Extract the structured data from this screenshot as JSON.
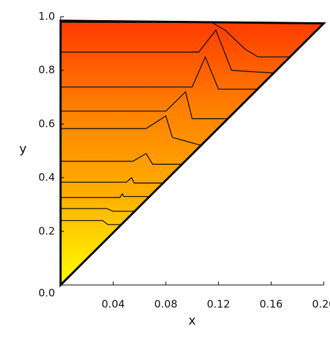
{
  "chart_data": {
    "type": "contour",
    "xlabel": "x",
    "ylabel": "y",
    "xlim": [
      0,
      0.2
    ],
    "ylim": [
      0,
      1
    ],
    "xticks": [
      0.04,
      0.08,
      0.12,
      0.16,
      {
        "value": 0.2,
        "label": "0.20"
      }
    ],
    "yticks": [
      {
        "value": 0,
        "label": "0.0"
      },
      0.2,
      0.4,
      0.6,
      0.8,
      {
        "value": 1,
        "label": "1.0"
      }
    ],
    "boundary": {
      "x": [
        0,
        0,
        0.2
      ],
      "y": [
        0,
        0.985,
        0.975
      ]
    },
    "fill_colors": [
      "#ffff00",
      "#ffb000",
      "#ff8000",
      "#ff3a00"
    ],
    "contours": [
      {
        "x": [
          0,
          0.032,
          0.036,
          0.046
        ],
        "y": [
          0.24,
          0.24,
          0.225,
          0.225
        ]
      },
      {
        "x": [
          0,
          0.035,
          0.04,
          0.056
        ],
        "y": [
          0.285,
          0.285,
          0.275,
          0.275
        ]
      },
      {
        "x": [
          0,
          0.045,
          0.047,
          0.048,
          0.068
        ],
        "y": [
          0.326,
          0.326,
          0.34,
          0.33,
          0.33
        ]
      },
      {
        "x": [
          0,
          0.05,
          0.054,
          0.056,
          0.078
        ],
        "y": [
          0.383,
          0.383,
          0.4,
          0.38,
          0.38
        ]
      },
      {
        "x": [
          0,
          0.055,
          0.065,
          0.07,
          0.092
        ],
        "y": [
          0.461,
          0.461,
          0.49,
          0.45,
          0.45
        ]
      },
      {
        "x": [
          0,
          0.065,
          0.08,
          0.085,
          0.107
        ],
        "y": [
          0.583,
          0.583,
          0.63,
          0.55,
          0.52
        ]
      },
      {
        "x": [
          0,
          0.08,
          0.095,
          0.1,
          0.127
        ],
        "y": [
          0.648,
          0.648,
          0.72,
          0.62,
          0.62
        ]
      },
      {
        "x": [
          0,
          0.1,
          0.11,
          0.12,
          0.15
        ],
        "y": [
          0.738,
          0.738,
          0.85,
          0.73,
          0.73
        ]
      },
      {
        "x": [
          0,
          0.105,
          0.118,
          0.13,
          0.162
        ],
        "y": [
          0.868,
          0.868,
          0.95,
          0.8,
          0.79
        ]
      },
      {
        "x": [
          0,
          0.115,
          0.125,
          0.14,
          0.15,
          0.174
        ],
        "y": [
          0.979,
          0.978,
          0.95,
          0.88,
          0.85,
          0.85
        ]
      }
    ]
  }
}
